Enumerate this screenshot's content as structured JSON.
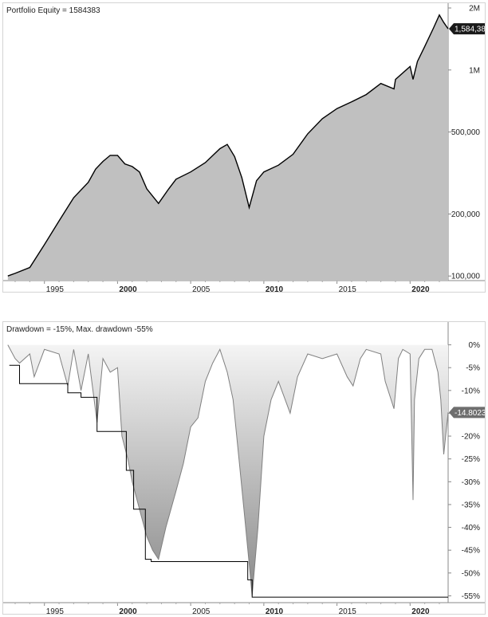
{
  "chart_data": [
    {
      "type": "area",
      "title": "Portfolio Equity = 1584383",
      "x": [
        1992.5,
        1993.0,
        1994.0,
        1995.0,
        1996.0,
        1997.0,
        1998.0,
        1998.5,
        1999.0,
        1999.5,
        2000.0,
        2000.5,
        2001.0,
        2001.5,
        2002.0,
        2002.8,
        2003.5,
        2004.0,
        2005.0,
        2006.0,
        2007.0,
        2007.5,
        2008.0,
        2008.5,
        2009.0,
        2009.5,
        2010.0,
        2011.0,
        2012.0,
        2013.0,
        2014.0,
        2015.0,
        2016.0,
        2017.0,
        2018.0,
        2018.9,
        2019.0,
        2020.0,
        2020.2,
        2020.5,
        2021.0,
        2021.6,
        2022.0,
        2022.3,
        2022.6
      ],
      "values": [
        100000,
        103000,
        110000,
        142000,
        185000,
        240000,
        285000,
        330000,
        360000,
        385000,
        385000,
        350000,
        340000,
        320000,
        265000,
        225000,
        265000,
        295000,
        320000,
        355000,
        415000,
        435000,
        380000,
        300000,
        215000,
        290000,
        320000,
        345000,
        390000,
        490000,
        580000,
        650000,
        700000,
        760000,
        860000,
        810000,
        900000,
        1040000,
        900000,
        1100000,
        1300000,
        1600000,
        1850000,
        1700000,
        1584383
      ],
      "ylabel": "",
      "xlabel": "",
      "yscale": "log",
      "ylim": [
        95000,
        2000000
      ],
      "y_ticks": [
        {
          "v": 2000000,
          "label": "2M"
        },
        {
          "v": 1000000,
          "label": "1M"
        },
        {
          "v": 500000,
          "label": "500,000"
        },
        {
          "v": 200000,
          "label": "200,000"
        },
        {
          "v": 100000,
          "label": "100,000"
        }
      ],
      "x_ticks": [
        {
          "v": 1995,
          "label": "1995",
          "bold": false
        },
        {
          "v": 2000,
          "label": "2000",
          "bold": true
        },
        {
          "v": 2005,
          "label": "2005",
          "bold": false
        },
        {
          "v": 2010,
          "label": "2010",
          "bold": true
        },
        {
          "v": 2015,
          "label": "2015",
          "bold": false
        },
        {
          "v": 2020,
          "label": "2020",
          "bold": true
        }
      ],
      "xlim": [
        1992.4,
        2022.6
      ],
      "last_value_label": "1,584,383",
      "fill_color": "#c0c0c0",
      "line_color": "#000000",
      "grid": false
    },
    {
      "type": "area",
      "title": "Drawdown = -15%, Max. drawdown -55%",
      "x": [
        1992.5,
        1993.0,
        1993.3,
        1994.0,
        1994.3,
        1995.0,
        1996.0,
        1996.6,
        1997.0,
        1997.5,
        1998.0,
        1998.6,
        1999.0,
        1999.5,
        2000.0,
        2000.3,
        2000.7,
        2001.0,
        2001.5,
        2002.0,
        2002.4,
        2002.8,
        2003.3,
        2004.0,
        2004.5,
        2005.0,
        2005.5,
        2006.0,
        2006.5,
        2007.0,
        2007.5,
        2007.9,
        2008.3,
        2008.7,
        2009.0,
        2009.2,
        2009.6,
        2010.0,
        2010.5,
        2011.0,
        2011.8,
        2012.3,
        2013.0,
        2014.0,
        2015.0,
        2015.7,
        2016.1,
        2016.6,
        2017.0,
        2018.0,
        2018.3,
        2018.9,
        2019.2,
        2019.5,
        2020.0,
        2020.2,
        2020.3,
        2020.6,
        2021.0,
        2021.5,
        2021.9,
        2022.1,
        2022.3,
        2022.6
      ],
      "values": [
        0,
        -3,
        -4,
        -2,
        -7,
        -1,
        -2,
        -9,
        -1,
        -10,
        -2,
        -17,
        -3,
        -6,
        -5,
        -20,
        -25,
        -30,
        -36,
        -42,
        -45,
        -47,
        -40,
        -32,
        -26,
        -18,
        -16,
        -8,
        -4,
        -1,
        -6,
        -12,
        -25,
        -38,
        -48,
        -55,
        -40,
        -20,
        -12,
        -8,
        -15,
        -7,
        -2,
        -3,
        -2,
        -7,
        -9,
        -3,
        -1,
        -2,
        -8,
        -14,
        -3,
        -1,
        -2,
        -34,
        -12,
        -3,
        -1,
        -1,
        -6,
        -12,
        -24,
        -14.8023
      ],
      "max_drawdown_steps": [
        {
          "x0": 1992.6,
          "x1": 1993.3,
          "v": -4.5
        },
        {
          "x0": 1993.3,
          "x1": 1996.6,
          "v": -8.5
        },
        {
          "x0": 1996.6,
          "x1": 1997.5,
          "v": -10.5
        },
        {
          "x0": 1997.5,
          "x1": 1998.6,
          "v": -11.5
        },
        {
          "x0": 1998.6,
          "x1": 2000.6,
          "v": -19
        },
        {
          "x0": 2000.6,
          "x1": 2001.1,
          "v": -27.5
        },
        {
          "x0": 2001.1,
          "x1": 2001.9,
          "v": -36
        },
        {
          "x0": 2001.9,
          "x1": 2002.3,
          "v": -47
        },
        {
          "x0": 2002.3,
          "x1": 2008.9,
          "v": -47.5
        },
        {
          "x0": 2008.9,
          "x1": 2009.2,
          "v": -51.5
        },
        {
          "x0": 2009.2,
          "x1": 2022.6,
          "v": -55.3
        }
      ],
      "ylim": [
        -56.5,
        1.5
      ],
      "y_ticks": [
        {
          "v": 0,
          "label": "0%"
        },
        {
          "v": -5,
          "label": "-5%"
        },
        {
          "v": -10,
          "label": "-10%"
        },
        {
          "v": -15,
          "label": ""
        },
        {
          "v": -20,
          "label": "-20%"
        },
        {
          "v": -25,
          "label": "-25%"
        },
        {
          "v": -30,
          "label": "-30%"
        },
        {
          "v": -35,
          "label": "-35%"
        },
        {
          "v": -40,
          "label": "-40%"
        },
        {
          "v": -45,
          "label": "-45%"
        },
        {
          "v": -50,
          "label": "-50%"
        },
        {
          "v": -55,
          "label": "-55%"
        }
      ],
      "x_ticks": [
        {
          "v": 1995,
          "label": "1995",
          "bold": false
        },
        {
          "v": 2000,
          "label": "2000",
          "bold": true
        },
        {
          "v": 2005,
          "label": "2005",
          "bold": false
        },
        {
          "v": 2010,
          "label": "2010",
          "bold": true
        },
        {
          "v": 2015,
          "label": "2015",
          "bold": false
        },
        {
          "v": 2020,
          "label": "2020",
          "bold": true
        }
      ],
      "xlim": [
        1992.4,
        2022.6
      ],
      "last_value_label": "-14.8023",
      "line_color": "#808080",
      "fill_gradient": [
        "#f4f4f4",
        "#8a8a8a"
      ],
      "grid": false
    }
  ]
}
